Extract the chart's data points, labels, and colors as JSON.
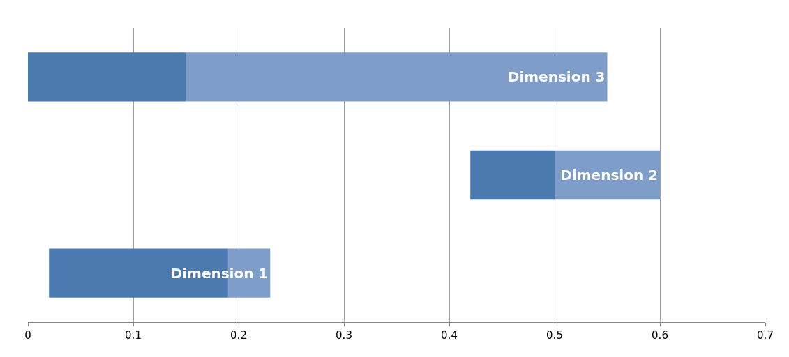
{
  "chart_data": {
    "type": "bar",
    "orientation": "horizontal",
    "categories": [
      null,
      null,
      null
    ],
    "series": [
      {
        "color": "#4a7ab0",
        "values": [
          0.15,
          0.08,
          0.17
        ],
        "base": [
          0,
          0.42,
          0.02
        ]
      },
      {
        "color": "#7f9dc9",
        "values": [
          0.4,
          0.1,
          0.04
        ],
        "base": [
          0.15,
          0.5,
          0.19
        ],
        "value_labels": [
          "Dimension 3",
          "Dimension 2",
          "Dimension 1"
        ]
      }
    ],
    "xlim": [
      0,
      0.7
    ],
    "xticks": [
      0,
      0.1,
      0.2,
      0.3,
      0.4,
      0.5,
      0.6,
      0.7
    ],
    "grid": "x",
    "tick_labels": "x"
  }
}
